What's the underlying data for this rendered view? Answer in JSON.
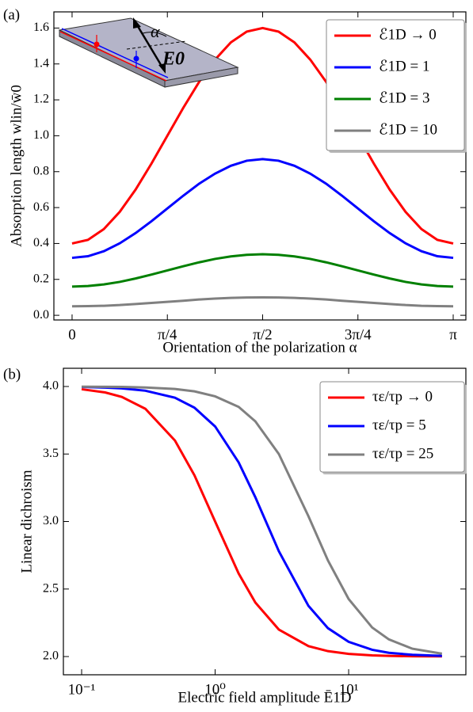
{
  "chart_data": [
    {
      "type": "line",
      "panel_label": "(a)",
      "xlabel": "Orientation of the polarization α",
      "ylabel": "Absorption length wlin/w̄0",
      "inset_labels": [
        "α",
        "E0"
      ],
      "x": [
        0,
        0.1309,
        0.2618,
        0.3927,
        0.5236,
        0.6545,
        0.7854,
        0.9163,
        1.0472,
        1.1781,
        1.309,
        1.4399,
        1.5708,
        1.7017,
        1.8326,
        1.9635,
        2.0944,
        2.2253,
        2.3562,
        2.4871,
        2.618,
        2.7489,
        2.8798,
        3.0107,
        3.1416
      ],
      "series": [
        {
          "name": "ℰ1D → 0",
          "color": "#ff0000",
          "values": [
            0.4,
            0.42,
            0.48,
            0.576,
            0.7,
            0.845,
            1.0,
            1.155,
            1.3,
            1.424,
            1.52,
            1.58,
            1.6,
            1.58,
            1.52,
            1.424,
            1.3,
            1.155,
            1.0,
            0.845,
            0.7,
            0.576,
            0.48,
            0.42,
            0.4
          ]
        },
        {
          "name": "ℰ1D = 1",
          "color": "#0000ff",
          "values": [
            0.32,
            0.329,
            0.357,
            0.401,
            0.458,
            0.524,
            0.595,
            0.666,
            0.733,
            0.789,
            0.833,
            0.861,
            0.87,
            0.861,
            0.833,
            0.789,
            0.733,
            0.666,
            0.595,
            0.524,
            0.458,
            0.401,
            0.357,
            0.329,
            0.32
          ]
        },
        {
          "name": "ℰ1D = 3",
          "color": "#008000",
          "values": [
            0.16,
            0.163,
            0.172,
            0.186,
            0.205,
            0.227,
            0.25,
            0.273,
            0.295,
            0.314,
            0.328,
            0.337,
            0.34,
            0.337,
            0.328,
            0.314,
            0.295,
            0.273,
            0.25,
            0.227,
            0.205,
            0.186,
            0.172,
            0.163,
            0.16
          ]
        },
        {
          "name": "ℰ1D = 10",
          "color": "#808080",
          "values": [
            0.05,
            0.051,
            0.053,
            0.057,
            0.063,
            0.069,
            0.075,
            0.081,
            0.088,
            0.093,
            0.097,
            0.099,
            0.1,
            0.099,
            0.097,
            0.093,
            0.088,
            0.081,
            0.075,
            0.069,
            0.063,
            0.057,
            0.053,
            0.051,
            0.05
          ]
        }
      ],
      "xlim": [
        -0.15,
        3.246
      ],
      "xticks": [
        0,
        {
          "value": 0.7854,
          "label": "π/4"
        },
        {
          "value": 1.5708,
          "label": "π/2"
        },
        {
          "value": 2.3562,
          "label": "3π/4"
        },
        {
          "value": 3.1416,
          "label": "π"
        }
      ],
      "ylim": [
        -0.026,
        1.69
      ],
      "yticks": [
        {
          "value": 0,
          "label": "0.0"
        },
        0.2,
        0.4,
        0.6,
        0.8,
        {
          "value": 1,
          "label": "1.0"
        },
        1.2,
        1.4,
        1.6
      ],
      "legend": "upper right"
    },
    {
      "type": "line",
      "panel_label": "(b)",
      "xlabel": "Electric field amplitude Ē1D",
      "ylabel": "Linear dichroism",
      "xscale": "log",
      "x": [
        0.1,
        0.15,
        0.2,
        0.3,
        0.5,
        0.7,
        1,
        1.5,
        2,
        3,
        5,
        7,
        10,
        15,
        20,
        30,
        50
      ],
      "series": [
        {
          "name": "τε/τp → 0",
          "color": "#ff0000",
          "values": [
            3.98,
            3.956,
            3.923,
            3.835,
            3.6,
            3.342,
            3.0,
            2.615,
            2.4,
            2.2,
            2.077,
            2.04,
            2.02,
            2.009,
            2.005,
            2.002,
            2.001
          ]
        },
        {
          "name": "τε/τp = 5",
          "color": "#0000ff",
          "values": [
            3.997,
            3.992,
            3.986,
            3.969,
            3.917,
            3.843,
            3.704,
            3.438,
            3.18,
            2.78,
            2.375,
            2.21,
            2.109,
            2.05,
            2.028,
            2.013,
            2.005
          ]
        },
        {
          "name": "τε/τp = 25",
          "color": "#808080",
          "values": [
            3.999,
            3.998,
            3.997,
            3.993,
            3.982,
            3.964,
            3.927,
            3.849,
            3.742,
            3.5,
            3.039,
            2.711,
            2.426,
            2.215,
            2.127,
            2.058,
            2.021
          ]
        }
      ],
      "xlim": [
        0.073,
        75.5
      ],
      "xticks": [
        {
          "value": 0.1,
          "label": "10⁻¹"
        },
        {
          "value": 1,
          "label": "10⁰"
        },
        {
          "value": 10,
          "label": "10¹"
        }
      ],
      "ylim": [
        1.865,
        4.135
      ],
      "yticks": [
        {
          "value": 2,
          "label": "2.0"
        },
        2.5,
        {
          "value": 3,
          "label": "3.0"
        },
        3.5,
        {
          "value": 4,
          "label": "4.0"
        }
      ],
      "legend": "upper right"
    }
  ]
}
